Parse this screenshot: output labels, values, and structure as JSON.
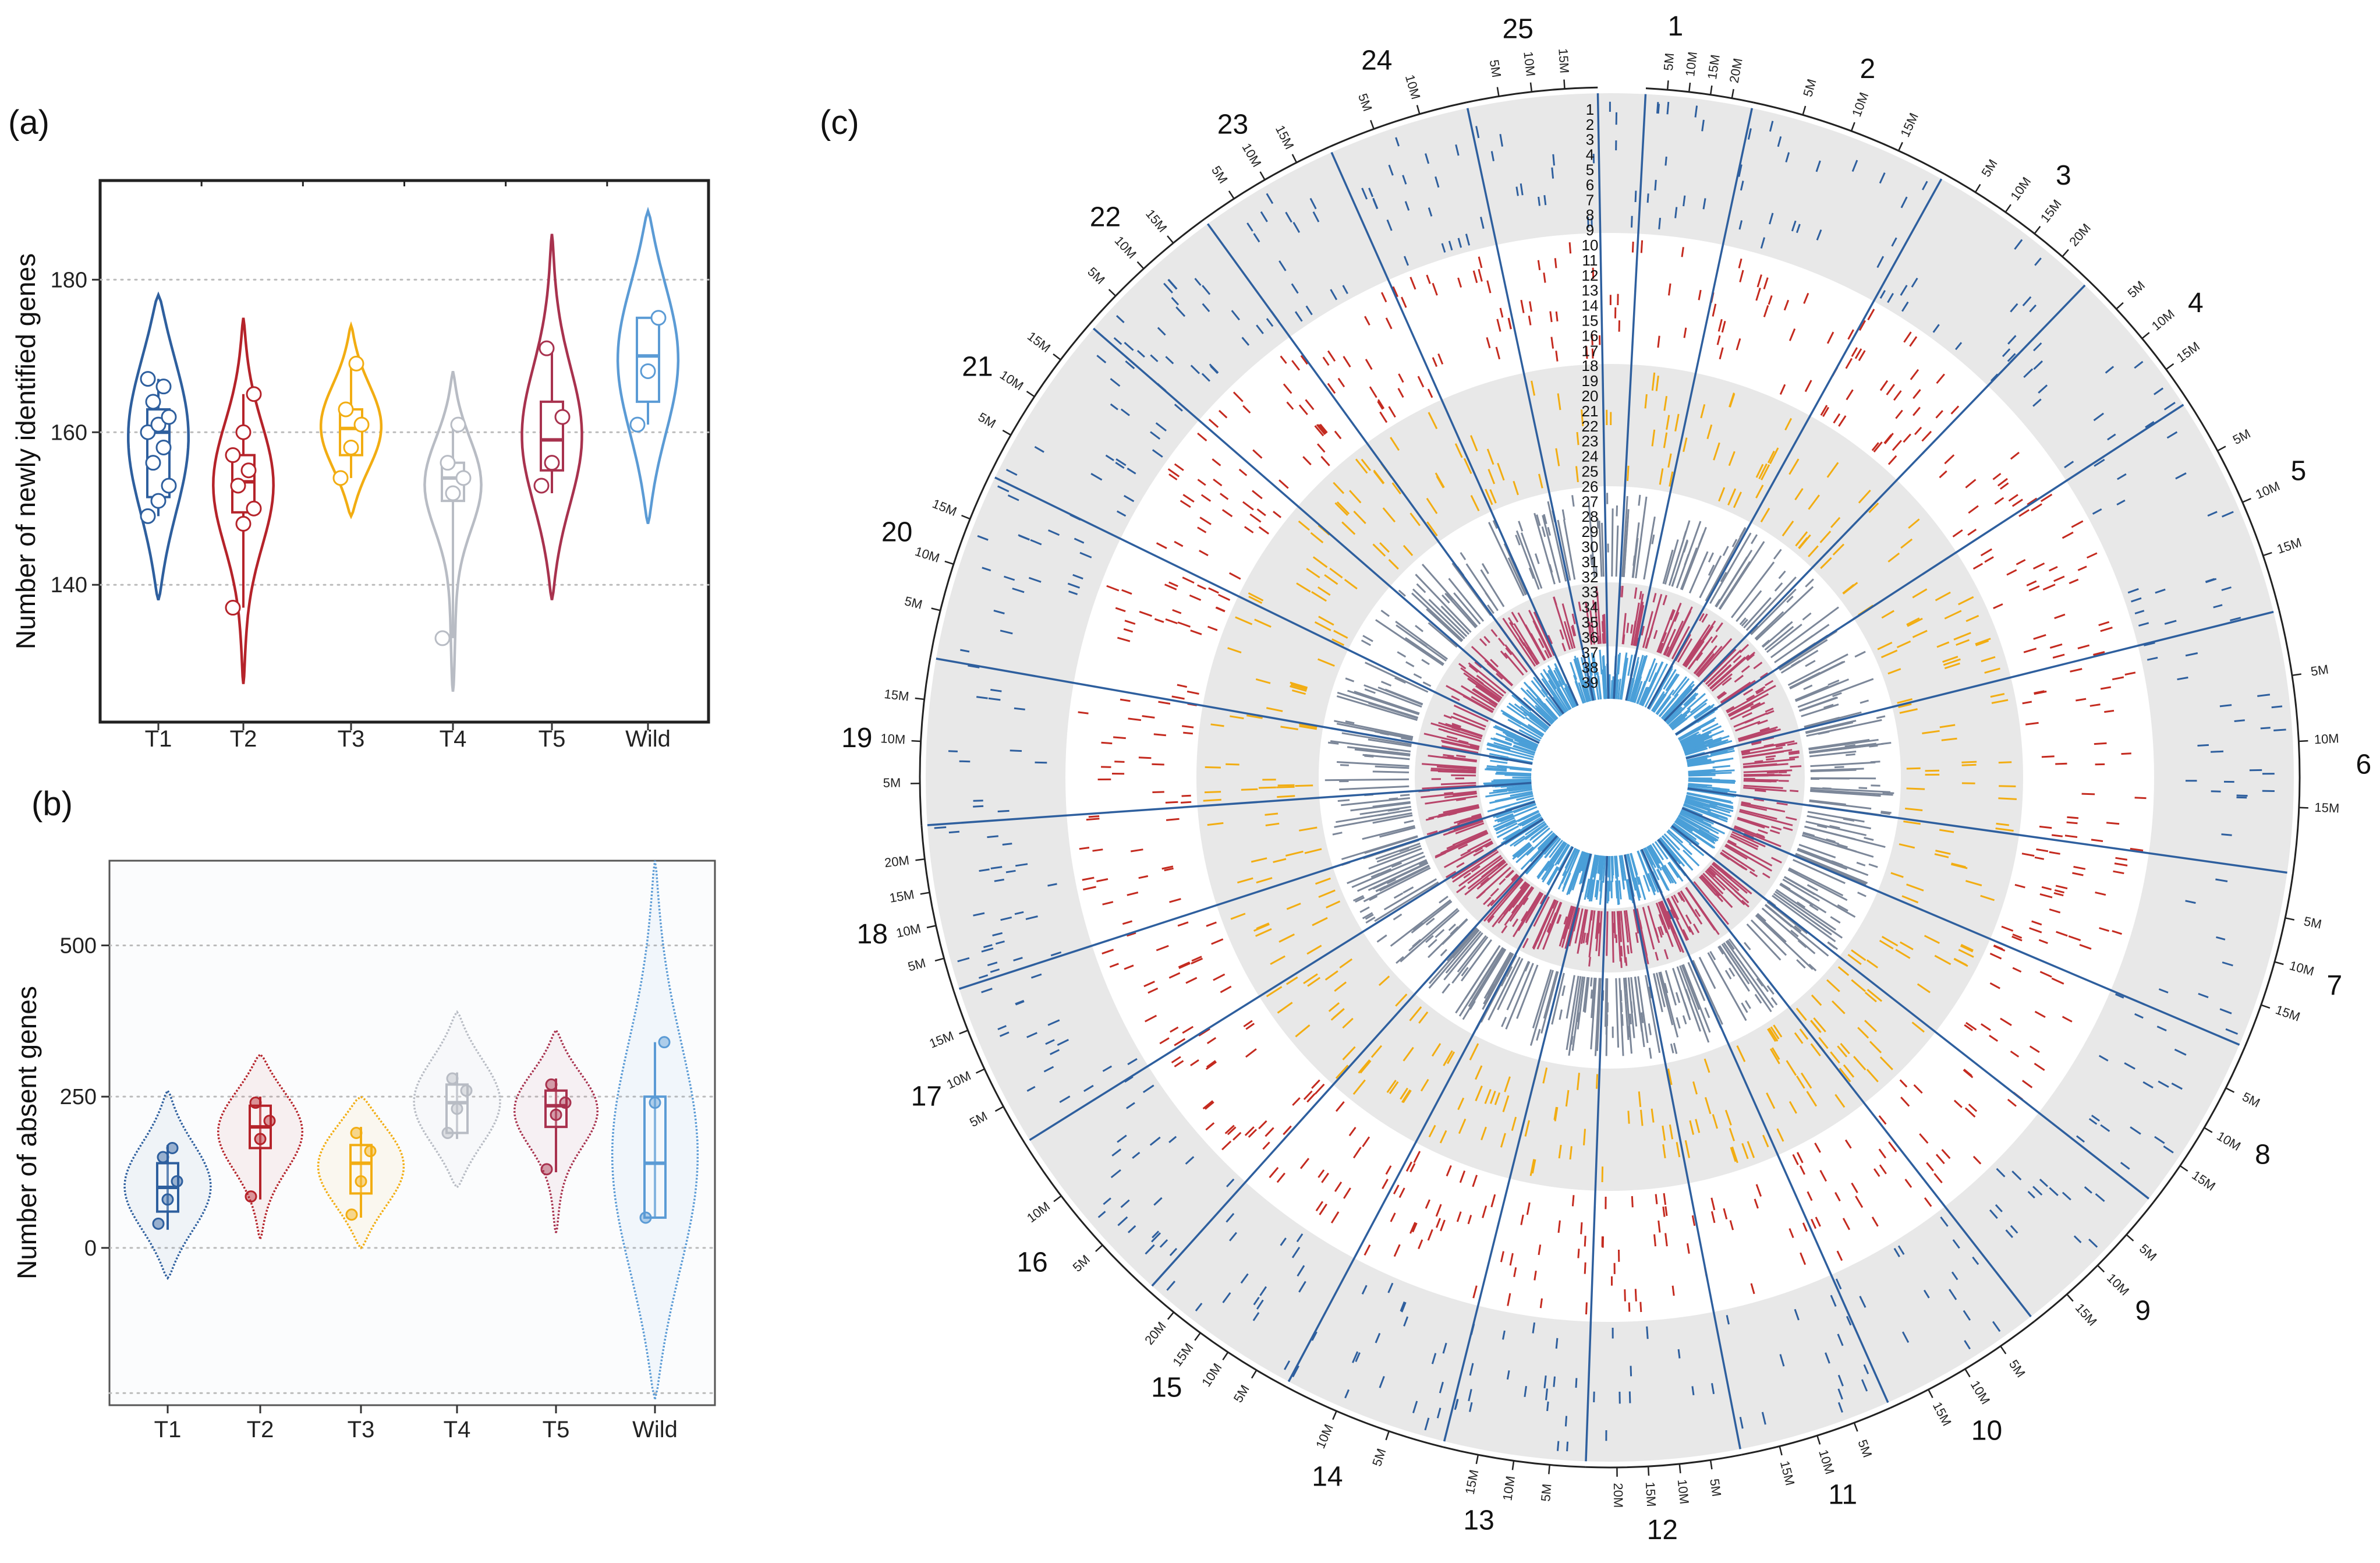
{
  "colors": {
    "T1": "#2e5f9e",
    "T2": "#b5232a",
    "T3": "#f2ad12",
    "T4": "#b8bcc4",
    "T5": "#a8324e",
    "Wild": "#5b9bd5",
    "gray_band": "#e8e8e8",
    "track_grey": "#7c8799",
    "track_pink": "#b8456a",
    "track_lightblue": "#4a9fd8",
    "grid": "#bbbbbb"
  },
  "chart_data": [
    {
      "id": "a",
      "panel_label": "(a)",
      "type": "violin",
      "ylabel": "Number of newly identified genes",
      "ylim": [
        122,
        193
      ],
      "yticks": [
        140,
        160,
        180
      ],
      "grid": "horizontal dotted",
      "categories": [
        "T1",
        "T2",
        "T3",
        "T4",
        "T5",
        "Wild"
      ],
      "series": [
        {
          "name": "T1",
          "vmin": 138,
          "vmax": 178,
          "q1": 151.5,
          "median": 160,
          "q3": 163,
          "wmin": 149,
          "wmax": 167,
          "points": [
            149,
            151,
            153,
            156,
            158,
            160,
            161,
            162,
            164,
            166,
            167
          ]
        },
        {
          "name": "T2",
          "vmin": 127,
          "vmax": 175,
          "q1": 149.5,
          "median": 153.5,
          "q3": 157,
          "wmin": 137,
          "wmax": 165,
          "points": [
            137,
            148,
            150,
            153,
            155,
            157,
            160,
            165
          ]
        },
        {
          "name": "T3",
          "vmin": 149,
          "vmax": 174,
          "q1": 157,
          "median": 160.5,
          "q3": 163,
          "wmin": 154,
          "wmax": 169,
          "points": [
            154,
            158,
            161,
            163,
            169
          ]
        },
        {
          "name": "T4",
          "vmin": 126,
          "vmax": 168,
          "q1": 151,
          "median": 154,
          "q3": 156,
          "wmin": 133,
          "wmax": 161,
          "points": [
            133,
            152,
            154,
            156,
            161
          ]
        },
        {
          "name": "T5",
          "vmin": 138,
          "vmax": 186,
          "q1": 155,
          "median": 159,
          "q3": 164,
          "wmin": 152,
          "wmax": 171,
          "points": [
            153,
            156,
            162,
            171
          ]
        },
        {
          "name": "Wild",
          "vmin": 148,
          "vmax": 189,
          "q1": 164,
          "median": 170,
          "q3": 175,
          "wmin": 161,
          "wmax": 175,
          "points": [
            161,
            168,
            175
          ]
        }
      ]
    },
    {
      "id": "b",
      "panel_label": "(b)",
      "type": "violin",
      "ylabel": "Number of absent genes",
      "ylim": [
        -260,
        640
      ],
      "yticks": [
        0,
        250,
        500
      ],
      "grid": "horizontal dotted",
      "categories": [
        "T1",
        "T2",
        "T3",
        "T4",
        "T5",
        "Wild"
      ],
      "series": [
        {
          "name": "T1",
          "vmin": -50,
          "vmax": 260,
          "q1": 60,
          "median": 100,
          "q3": 140,
          "wmin": 30,
          "wmax": 170,
          "points": [
            40,
            80,
            110,
            150,
            165
          ]
        },
        {
          "name": "T2",
          "vmin": 15,
          "vmax": 320,
          "q1": 165,
          "median": 200,
          "q3": 235,
          "wmin": 80,
          "wmax": 250,
          "points": [
            85,
            180,
            210,
            240
          ]
        },
        {
          "name": "T3",
          "vmin": 0,
          "vmax": 250,
          "q1": 90,
          "median": 140,
          "q3": 170,
          "wmin": 50,
          "wmax": 200,
          "points": [
            55,
            110,
            160,
            190
          ]
        },
        {
          "name": "T4",
          "vmin": 100,
          "vmax": 390,
          "q1": 190,
          "median": 240,
          "q3": 270,
          "wmin": 180,
          "wmax": 290,
          "points": [
            190,
            230,
            260,
            280
          ]
        },
        {
          "name": "T5",
          "vmin": 25,
          "vmax": 360,
          "q1": 200,
          "median": 235,
          "q3": 260,
          "wmin": 125,
          "wmax": 280,
          "points": [
            130,
            220,
            240,
            270
          ]
        },
        {
          "name": "Wild",
          "vmin": -250,
          "vmax": 640,
          "q1": 50,
          "median": 140,
          "q3": 250,
          "wmin": 50,
          "wmax": 340,
          "points": [
            50,
            240,
            340
          ]
        }
      ]
    },
    {
      "id": "c",
      "panel_label": "(c)",
      "type": "circos",
      "chromosomes": [
        {
          "name": "1",
          "ticks": [
            "5M",
            "10M",
            "15M",
            "20M"
          ]
        },
        {
          "name": "2",
          "ticks": [
            "5M",
            "10M",
            "15M"
          ]
        },
        {
          "name": "3",
          "ticks": [
            "5M",
            "10M",
            "15M",
            "20M"
          ]
        },
        {
          "name": "4",
          "ticks": [
            "5M",
            "10M",
            "15M"
          ]
        },
        {
          "name": "5",
          "ticks": [
            "5M",
            "10M",
            "15M"
          ]
        },
        {
          "name": "6",
          "ticks": [
            "5M",
            "10M",
            "15M"
          ]
        },
        {
          "name": "7",
          "ticks": [
            "5M",
            "10M",
            "15M"
          ]
        },
        {
          "name": "8",
          "ticks": [
            "5M",
            "10M",
            "15M"
          ]
        },
        {
          "name": "9",
          "ticks": [
            "5M",
            "10M",
            "15M"
          ]
        },
        {
          "name": "10",
          "ticks": [
            "5M",
            "10M",
            "15M"
          ]
        },
        {
          "name": "11",
          "ticks": [
            "5M",
            "10M",
            "15M"
          ]
        },
        {
          "name": "12",
          "ticks": [
            "5M",
            "10M",
            "15M",
            "20M"
          ]
        },
        {
          "name": "13",
          "ticks": [
            "5M",
            "10M",
            "15M"
          ]
        },
        {
          "name": "14",
          "ticks": [
            "5M",
            "10M"
          ]
        },
        {
          "name": "15",
          "ticks": [
            "5M",
            "10M",
            "15M",
            "20M"
          ]
        },
        {
          "name": "16",
          "ticks": [
            "5M",
            "10M"
          ]
        },
        {
          "name": "17",
          "ticks": [
            "5M",
            "10M",
            "15M"
          ]
        },
        {
          "name": "18",
          "ticks": [
            "5M",
            "10M",
            "15M",
            "20M"
          ]
        },
        {
          "name": "19",
          "ticks": [
            "5M",
            "10M",
            "15M"
          ]
        },
        {
          "name": "20",
          "ticks": [
            "5M",
            "10M",
            "15M"
          ]
        },
        {
          "name": "21",
          "ticks": [
            "5M",
            "10M",
            "15M"
          ]
        },
        {
          "name": "22",
          "ticks": [
            "5M",
            "10M",
            "15M"
          ]
        },
        {
          "name": "23",
          "ticks": [
            "5M",
            "10M",
            "15M"
          ]
        },
        {
          "name": "24",
          "ticks": [
            "5M",
            "10M"
          ]
        },
        {
          "name": "25",
          "ticks": [
            "5M",
            "10M",
            "15M"
          ]
        }
      ],
      "track_labels": [
        "1",
        "2",
        "3",
        "4",
        "5",
        "6",
        "7",
        "8",
        "9",
        "10",
        "11",
        "12",
        "13",
        "14",
        "15",
        "16",
        "17",
        "18",
        "19",
        "20",
        "21",
        "22",
        "23",
        "24",
        "25",
        "26",
        "27",
        "28",
        "29",
        "30",
        "31",
        "32",
        "33",
        "34",
        "35",
        "36",
        "37",
        "38",
        "39"
      ],
      "track_groups": [
        {
          "tracks": "1-10",
          "color": "#2e5f9e",
          "band": "gray"
        },
        {
          "tracks": "11-19",
          "color": "#c42a1f",
          "band": "white"
        },
        {
          "tracks": "20-25",
          "color": "#f2ad12",
          "band": "gray"
        },
        {
          "tracks": "26-32",
          "color": "#7c8799",
          "band": "white"
        },
        {
          "tracks": "33-37",
          "color": "#b8456a",
          "band": "gray"
        },
        {
          "tracks": "38-39",
          "color": "#4a9fd8",
          "band": "white"
        }
      ]
    }
  ]
}
